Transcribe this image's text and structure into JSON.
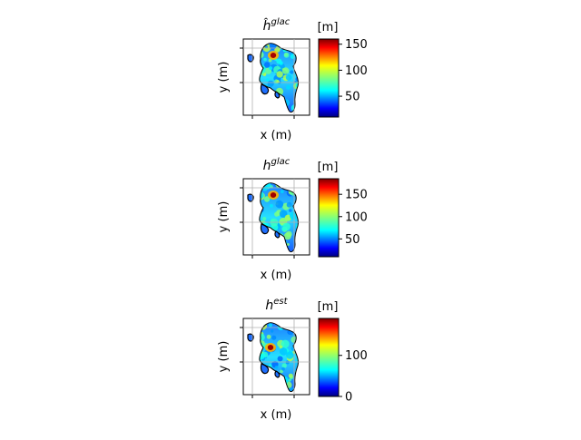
{
  "chart_data": [
    {
      "type": "heatmap",
      "title": "ĥ",
      "title_sup": "glac",
      "xlabel": "x (m)",
      "ylabel": "y (m)",
      "colorbar_label": "[m]",
      "colormap": "jet",
      "vmin": 10,
      "vmax": 160,
      "colorbar_ticks": [
        50,
        100,
        150
      ],
      "grid": true,
      "hotspot": {
        "value": 155,
        "region": "upper-center"
      }
    },
    {
      "type": "heatmap",
      "title": "h",
      "title_sup": "glac",
      "xlabel": "x (m)",
      "ylabel": "y (m)",
      "colorbar_label": "[m]",
      "colormap": "jet",
      "vmin": 10,
      "vmax": 185,
      "colorbar_ticks": [
        50,
        100,
        150
      ],
      "grid": true,
      "hotspot": {
        "value": 180,
        "region": "upper-center"
      }
    },
    {
      "type": "heatmap",
      "title": "h",
      "title_sup": "est",
      "xlabel": "x (m)",
      "ylabel": "y (m)",
      "colorbar_label": "[m]",
      "colormap": "jet",
      "vmin": 0,
      "vmax": 190,
      "colorbar_ticks": [
        0,
        100
      ],
      "grid": true,
      "hotspot": {
        "value": 185,
        "region": "center"
      }
    }
  ]
}
